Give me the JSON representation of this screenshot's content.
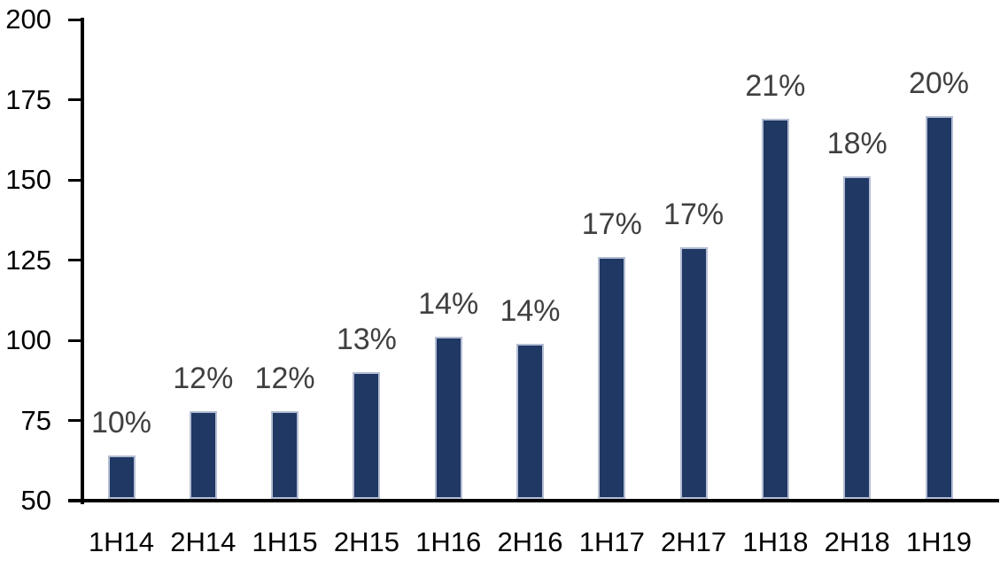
{
  "chart_data": {
    "type": "bar",
    "title": "",
    "xlabel": "",
    "ylabel": "",
    "categories": [
      "1H14",
      "2H14",
      "1H15",
      "2H15",
      "1H16",
      "2H16",
      "1H17",
      "2H17",
      "1H18",
      "2H18",
      "1H19"
    ],
    "values": [
      64,
      78,
      78,
      90,
      101,
      99,
      126,
      129,
      169,
      151,
      170
    ],
    "bar_labels": [
      "10%",
      "12%",
      "12%",
      "13%",
      "14%",
      "14%",
      "17%",
      "17%",
      "21%",
      "18%",
      "20%"
    ],
    "yticks": [
      50,
      75,
      100,
      125,
      150,
      175,
      200
    ],
    "ylim": [
      50,
      200
    ],
    "grid": "off",
    "legend_position": "none",
    "colors": {
      "bar_fill": "#1F3864",
      "bar_border": "#B4BDD3",
      "data_label": "#404040",
      "axis_line": "#000000",
      "tick_label": "#000000",
      "background": "#FFFFFF"
    }
  }
}
